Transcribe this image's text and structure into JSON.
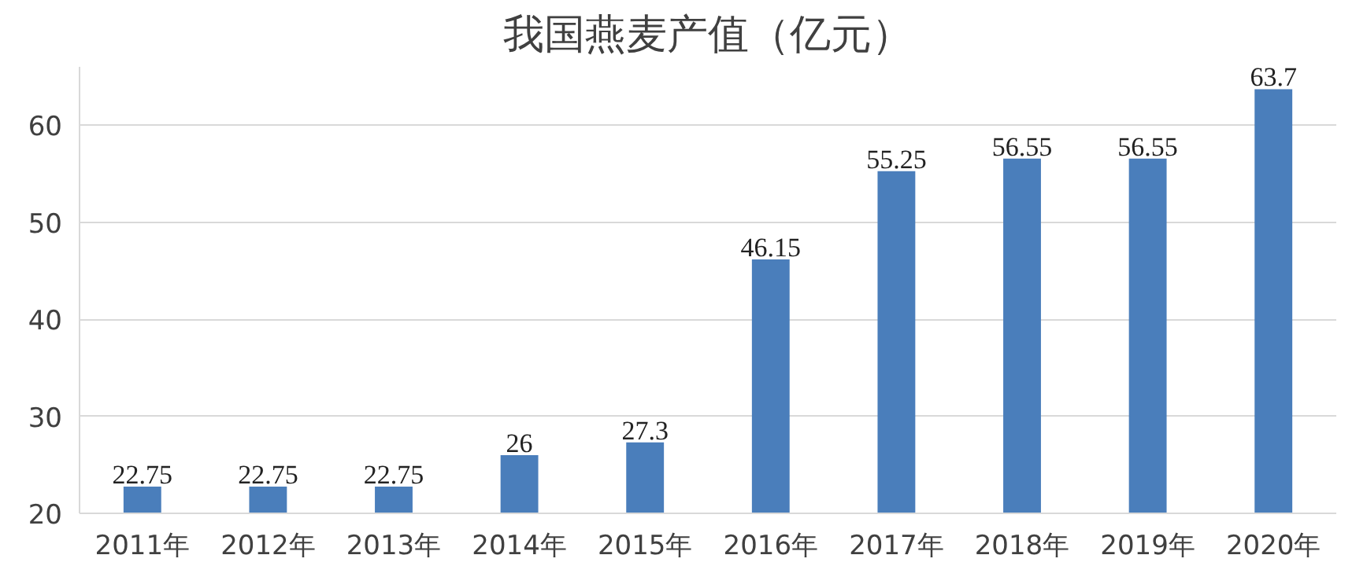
{
  "chart_data": {
    "type": "bar",
    "title": "我国燕麦产值（亿元）",
    "categories": [
      "2011年",
      "2012年",
      "2013年",
      "2014年",
      "2015年",
      "2016年",
      "2017年",
      "2018年",
      "2019年",
      "2020年"
    ],
    "values": [
      22.75,
      22.75,
      22.75,
      26,
      27.3,
      46.15,
      55.25,
      56.55,
      56.55,
      63.7
    ],
    "color": "#4a7ebb",
    "ylim": [
      20,
      66
    ],
    "yticks": [
      20,
      30,
      40,
      50,
      60
    ],
    "grid": "y",
    "data_labels": true
  }
}
